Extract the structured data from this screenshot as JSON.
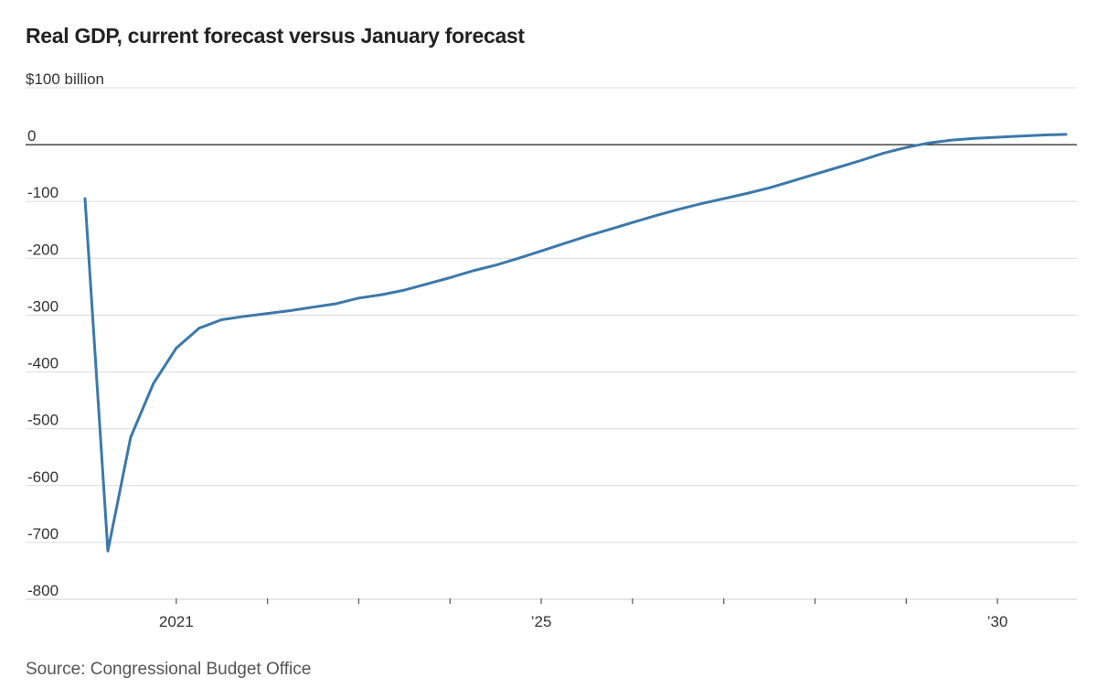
{
  "chart_data": {
    "type": "line",
    "title": "Real GDP, current forecast versus January forecast",
    "unit_label": "$100 billion",
    "xlabel": "",
    "ylabel": "",
    "ylim": [
      -800,
      100
    ],
    "yticks": [
      100,
      0,
      -100,
      -200,
      -300,
      -400,
      -500,
      -600,
      -700,
      -800
    ],
    "ytick_labels": [
      "",
      "0",
      "-100",
      "-200",
      "-300",
      "-400",
      "-500",
      "-600",
      "-700",
      "-800"
    ],
    "xlim": [
      2019.75,
      2031.25
    ],
    "xticks": [
      2021,
      2022,
      2023,
      2024,
      2025,
      2026,
      2027,
      2028,
      2029,
      2030
    ],
    "xtick_labels": [
      {
        "x": 2021,
        "label": "2021"
      },
      {
        "x": 2025,
        "label": "’25"
      },
      {
        "x": 2030,
        "label": "’30"
      }
    ],
    "grid": true,
    "legend": "none",
    "series": [
      {
        "color": "#3c79aa",
        "x": [
          2020.0,
          2020.25,
          2020.5,
          2020.75,
          2021.0,
          2021.25,
          2021.5,
          2021.75,
          2022.0,
          2022.25,
          2022.5,
          2022.75,
          2023.0,
          2023.25,
          2023.5,
          2023.75,
          2024.0,
          2024.25,
          2024.5,
          2024.75,
          2025.0,
          2025.25,
          2025.5,
          2025.75,
          2026.0,
          2026.25,
          2026.5,
          2026.75,
          2027.0,
          2027.25,
          2027.5,
          2027.75,
          2028.0,
          2028.25,
          2028.5,
          2028.75,
          2029.0,
          2029.25,
          2029.5,
          2029.75,
          2030.0,
          2030.25,
          2030.5,
          2030.75
        ],
        "y": [
          -95,
          -715,
          -515,
          -420,
          -358,
          -323,
          -308,
          -302,
          -297,
          -292,
          -286,
          -280,
          -270,
          -264,
          -256,
          -245,
          -234,
          -222,
          -212,
          -200,
          -187,
          -174,
          -161,
          -149,
          -137,
          -125,
          -114,
          -104,
          -95,
          -86,
          -76,
          -64,
          -52,
          -40,
          -28,
          -15,
          -5,
          3,
          8,
          11,
          13,
          15,
          17,
          18
        ]
      }
    ]
  },
  "source": "Source: Congressional Budget Office"
}
